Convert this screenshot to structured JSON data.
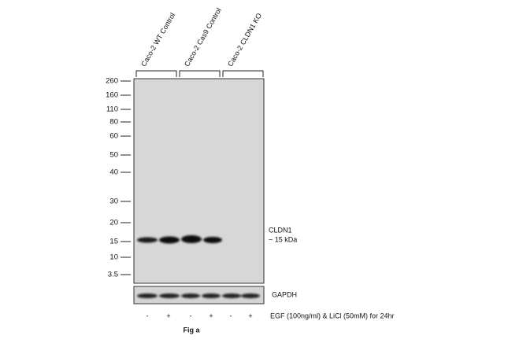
{
  "lane_groups": [
    "Caco-2 WT Control",
    "Caco-2 Cas9 Control",
    "Caco-2 CLDN1 KO"
  ],
  "markers": [
    "260",
    "160",
    "110",
    "80",
    "60",
    "50",
    "40",
    "30",
    "20",
    "15",
    "10",
    "3.5"
  ],
  "band_labels": {
    "target": "CLDN1",
    "size": "~ 15 kDa",
    "loading": "GAPDH"
  },
  "treatment": {
    "signs": [
      "-",
      "+",
      "-",
      "+",
      "-",
      "+"
    ],
    "label": "EGF (100ng/ml) & LiCl (50mM) for 24hr"
  },
  "caption": "Fig a"
}
